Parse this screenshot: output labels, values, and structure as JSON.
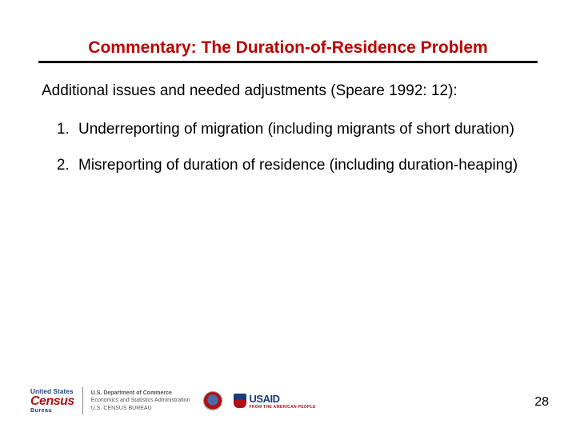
{
  "slide": {
    "title": "Commentary: The Duration-of-Residence Problem",
    "title_color": "#c00000",
    "title_fontsize": 21,
    "rule_color": "#000000",
    "rule_height": 3,
    "intro": "Additional issues and needed adjustments (Speare 1992: 12):",
    "body_fontsize": 19,
    "body_color": "#000000",
    "items": [
      "Underreporting of migration (including migrants of short duration)",
      "Misreporting of duration of residence (including duration-heaping)"
    ],
    "page_number": "28"
  },
  "footer": {
    "census": {
      "top": "United States",
      "main": "Census",
      "sub": "Bureau"
    },
    "doc": {
      "line1": "U.S. Department of Commerce",
      "line2": "Economics and Statistics Administration",
      "line3": "U.S. CENSUS BUREAU"
    },
    "usaid": {
      "main": "USAID",
      "sub": "FROM THE AMERICAN PEOPLE"
    }
  },
  "colors": {
    "background": "#ffffff",
    "census_red": "#b01116",
    "census_blue": "#1a3a7a"
  }
}
